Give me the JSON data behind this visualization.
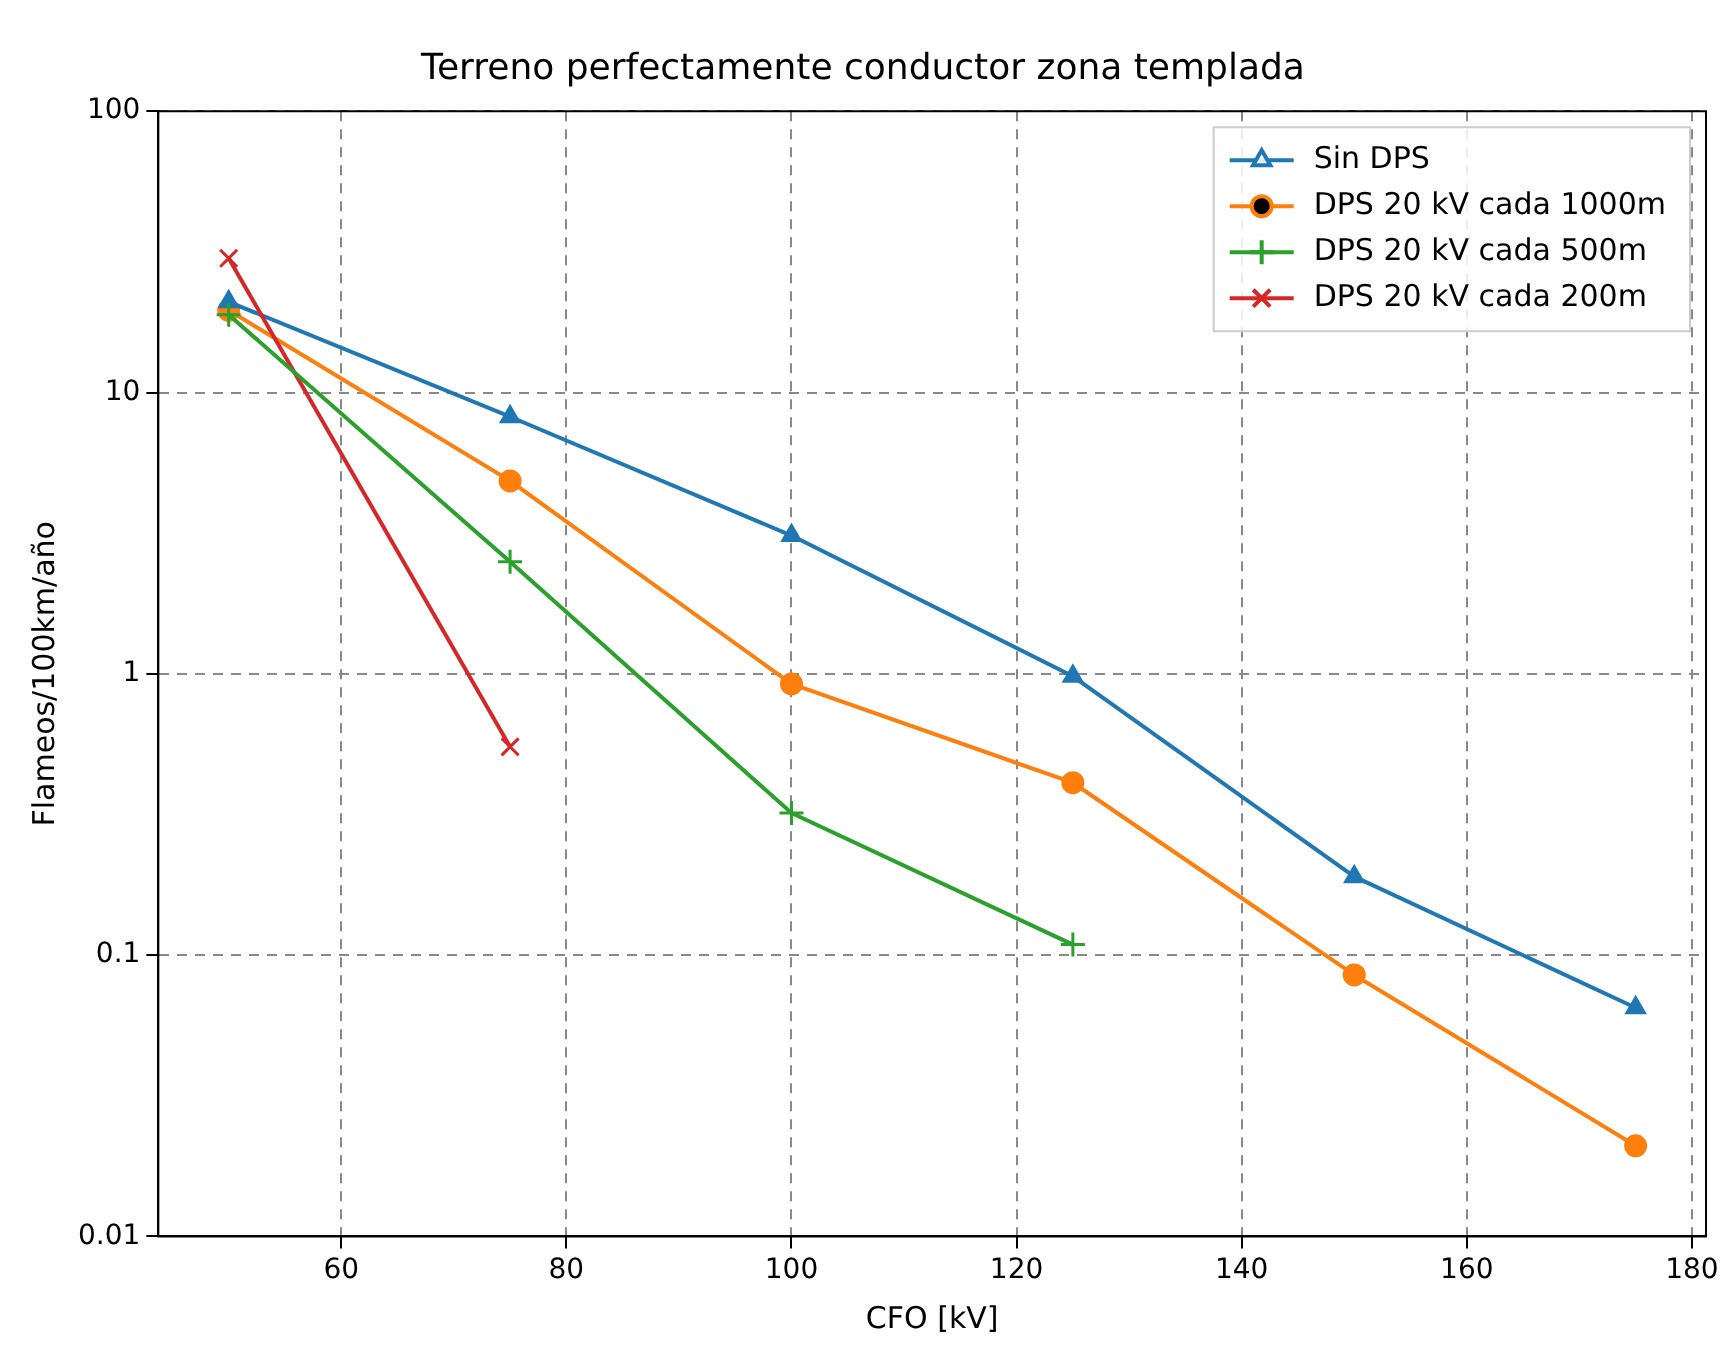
{
  "chart_data": {
    "type": "line",
    "title": "Terreno perfectamente conductor zona templada",
    "xlabel": "CFO [kV]",
    "ylabel": "Flameos/100km/año",
    "x": [
      50,
      75,
      100,
      125,
      150,
      175
    ],
    "series": [
      {
        "name": "Sin DPS",
        "color": "#1f77b4",
        "marker": "triangle",
        "values": [
          21,
          8.2,
          3.1,
          0.98,
          0.19,
          0.065
        ]
      },
      {
        "name": "DPS 20 kV cada 1000m",
        "color": "#ff7f0e",
        "marker": "circle",
        "values": [
          19.6,
          4.85,
          0.92,
          0.41,
          0.085,
          0.021
        ]
      },
      {
        "name": "DPS 20 kV cada 500m",
        "color": "#2ca02c",
        "marker": "cross",
        "values": [
          18.9,
          2.5,
          0.32,
          0.109,
          null,
          null
        ]
      },
      {
        "name": "DPS 20 kV cada 200m",
        "color": "#d62728",
        "marker": "x",
        "values": [
          30,
          0.55,
          null,
          null,
          null,
          null
        ]
      }
    ],
    "xlim": [
      43.75,
      181.25
    ],
    "xticks": [
      60,
      80,
      100,
      120,
      140,
      160,
      180
    ],
    "ylim": [
      0.01,
      100
    ],
    "yticks": [
      0.01,
      0.1,
      1,
      10,
      100
    ],
    "log": "y",
    "grid": true,
    "legend": "top right",
    "line_style": "solid"
  }
}
